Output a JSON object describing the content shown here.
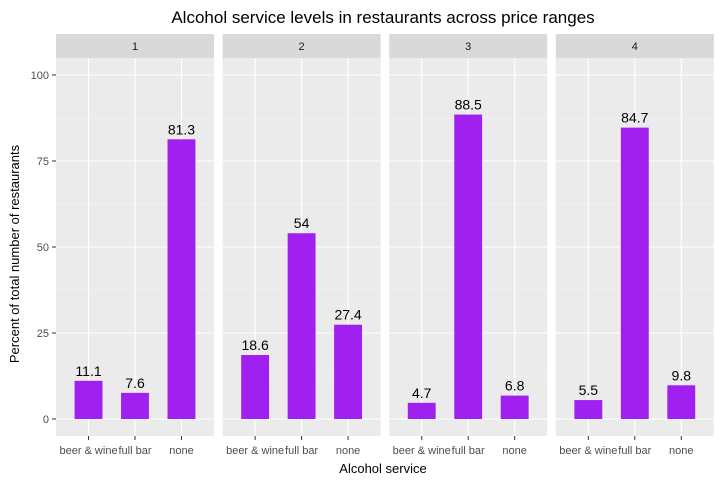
{
  "chart_data": {
    "type": "bar",
    "title": "Alcohol service levels in restaurants across price ranges",
    "xlabel": "Alcohol service",
    "ylabel": "Percent of total number of restaurants",
    "ylim": [
      0,
      110
    ],
    "yticks": [
      0,
      25,
      50,
      75,
      100
    ],
    "categories": [
      "beer & wine",
      "full bar",
      "none"
    ],
    "facets": [
      {
        "label": "1",
        "values": [
          11.1,
          7.6,
          81.3
        ],
        "value_labels": [
          "11.1",
          "7.6",
          "81.3"
        ]
      },
      {
        "label": "2",
        "values": [
          18.6,
          54,
          27.4
        ],
        "value_labels": [
          "18.6",
          "54",
          "27.4"
        ]
      },
      {
        "label": "3",
        "values": [
          4.7,
          88.5,
          6.8
        ],
        "value_labels": [
          "4.7",
          "88.5",
          "6.8"
        ]
      },
      {
        "label": "4",
        "values": [
          5.5,
          84.7,
          9.8
        ],
        "value_labels": [
          "5.5",
          "84.7",
          "9.8"
        ]
      }
    ],
    "bar_color": "#a020f0",
    "panel_background": "#ebebeb",
    "strip_background": "#d9d9d9",
    "grid": true,
    "legend": "none"
  }
}
